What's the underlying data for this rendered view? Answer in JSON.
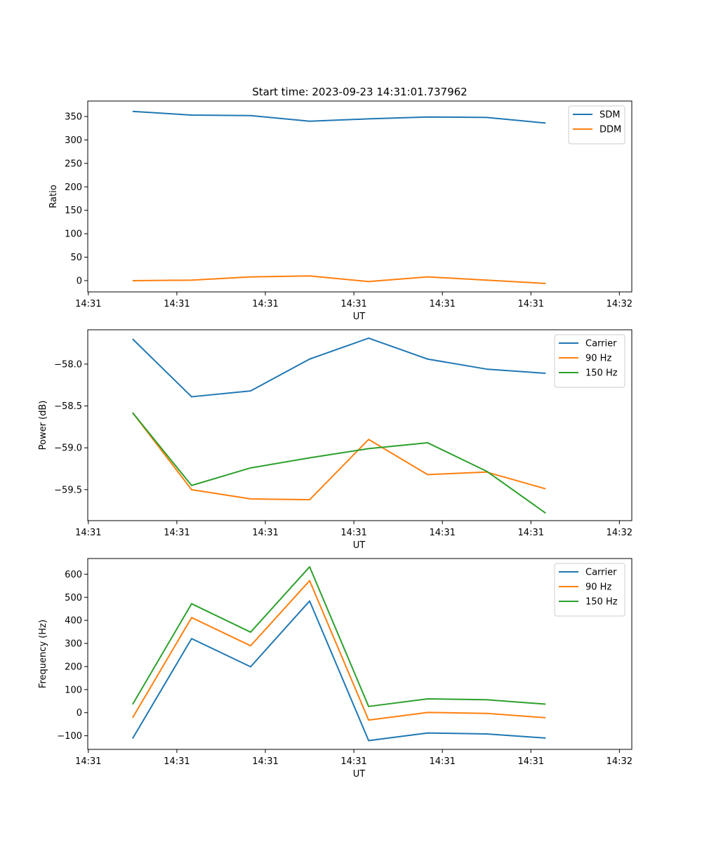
{
  "figure": {
    "suptitle": "Start time: 2023-09-23 14:31:01.737962"
  },
  "chart_data": [
    {
      "type": "line",
      "title": "Start time: 2023-09-23 14:31:01.737962",
      "xlabel": "UT",
      "ylabel": "Ratio",
      "x": [
        0,
        1,
        2,
        3,
        4,
        5,
        6,
        7
      ],
      "xlim": [
        -0.76,
        8.46
      ],
      "xticks": [
        -0.75,
        0.75,
        2.25,
        3.75,
        5.25,
        6.75,
        8.25
      ],
      "xtick_labels": [
        "14:31",
        "14:31",
        "14:31",
        "14:31",
        "14:31",
        "14:31",
        "14:32"
      ],
      "ylim": [
        -24,
        383
      ],
      "yticks": [
        0,
        50,
        100,
        150,
        200,
        250,
        300,
        350
      ],
      "ytick_labels": [
        "0",
        "50",
        "100",
        "150",
        "200",
        "250",
        "300",
        "350"
      ],
      "legend_position": "top-right",
      "series": [
        {
          "name": "SDM",
          "color": "#1f77b4",
          "values": [
            361,
            353,
            352,
            340,
            345,
            349,
            348,
            336
          ]
        },
        {
          "name": "DDM",
          "color": "#ff7f0e",
          "values": [
            0,
            1,
            8,
            10,
            -2,
            8,
            1,
            -6
          ]
        }
      ]
    },
    {
      "type": "line",
      "xlabel": "UT",
      "ylabel": "Power (dB)",
      "x": [
        0,
        1,
        2,
        3,
        4,
        5,
        6,
        7
      ],
      "xlim": [
        -0.76,
        8.46
      ],
      "xticks": [
        -0.75,
        0.75,
        2.25,
        3.75,
        5.25,
        6.75,
        8.25
      ],
      "xtick_labels": [
        "14:31",
        "14:31",
        "14:31",
        "14:31",
        "14:31",
        "14:31",
        "14:32"
      ],
      "ylim": [
        -59.87,
        -57.59
      ],
      "yticks": [
        -59.5,
        -59.0,
        -58.5,
        -58.0
      ],
      "ytick_labels": [
        "−59.5",
        "−59.0",
        "−58.5",
        "−58.0"
      ],
      "legend_position": "top-right",
      "series": [
        {
          "name": "Carrier",
          "color": "#1f77b4",
          "values": [
            -57.7,
            -58.39,
            -58.32,
            -57.94,
            -57.69,
            -57.94,
            -58.06,
            -58.11
          ]
        },
        {
          "name": "90 Hz",
          "color": "#ff7f0e",
          "values": [
            -58.58,
            -59.5,
            -59.61,
            -59.62,
            -58.9,
            -59.32,
            -59.29,
            -59.49
          ]
        },
        {
          "name": "150 Hz",
          "color": "#2ca02c",
          "values": [
            -58.58,
            -59.45,
            -59.24,
            -59.12,
            -59.01,
            -58.94,
            -59.28,
            -59.78
          ]
        }
      ]
    },
    {
      "type": "line",
      "xlabel": "UT",
      "ylabel": "Frequency (Hz)",
      "x": [
        0,
        1,
        2,
        3,
        4,
        5,
        6,
        7
      ],
      "xlim": [
        -0.76,
        8.46
      ],
      "xticks": [
        -0.75,
        0.75,
        2.25,
        3.75,
        5.25,
        6.75,
        8.25
      ],
      "xtick_labels": [
        "14:31",
        "14:31",
        "14:31",
        "14:31",
        "14:31",
        "14:31",
        "14:32"
      ],
      "ylim": [
        -159,
        668
      ],
      "yticks": [
        -100,
        0,
        100,
        200,
        300,
        400,
        500,
        600
      ],
      "ytick_labels": [
        "−100",
        "0",
        "100",
        "200",
        "300",
        "400",
        "500",
        "600"
      ],
      "legend_position": "top-right",
      "series": [
        {
          "name": "Carrier",
          "color": "#1f77b4",
          "values": [
            -112,
            321,
            199,
            484,
            -121,
            -88,
            -92,
            -110
          ]
        },
        {
          "name": "90 Hz",
          "color": "#ff7f0e",
          "values": [
            -22,
            412,
            290,
            572,
            -32,
            1,
            -3,
            -22
          ]
        },
        {
          "name": "150 Hz",
          "color": "#2ca02c",
          "values": [
            36,
            472,
            349,
            632,
            27,
            60,
            56,
            37
          ]
        }
      ]
    }
  ]
}
